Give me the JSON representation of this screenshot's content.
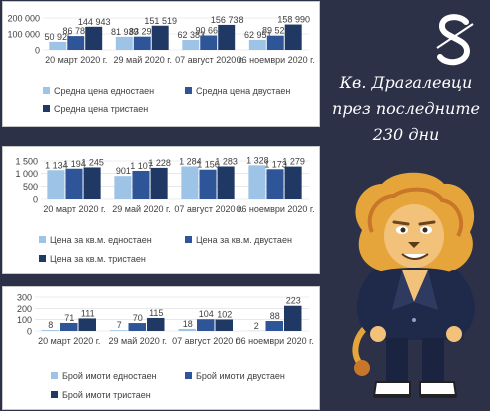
{
  "headline": {
    "line1": "Кв. Драгалевци",
    "line2": "през последните",
    "line3": "230 дни"
  },
  "colors": {
    "series1": "#9dc3e6",
    "series2": "#2e5597",
    "series3": "#1f3864",
    "background": "#2c3148",
    "text": "#404040"
  },
  "logo": {
    "name": "s-monogram-logo"
  },
  "mascot": {
    "name": "lion-mascot-illustration"
  },
  "chart_data": [
    {
      "type": "bar",
      "categories": [
        "20 март 2020 г.",
        "29 май 2020 г.",
        "07 август 2020 г.",
        "06 ноември 2020 г."
      ],
      "series": [
        {
          "name": "Средна цена едностаен",
          "values": [
            50925,
            81939,
            62383,
            62951
          ],
          "labels": [
            "50 925",
            "81 939",
            "62 383",
            "62 951"
          ]
        },
        {
          "name": "Средна цена двустаен",
          "values": [
            86786,
            83291,
            90667,
            89523
          ],
          "labels": [
            "86 786",
            "83 291",
            "90 667",
            "89 523"
          ]
        },
        {
          "name": "Средна цена тристаен",
          "values": [
            144943,
            151519,
            156738,
            158990
          ],
          "labels": [
            "144 943",
            "151 519",
            "156 738",
            "158 990"
          ]
        }
      ],
      "yticks": [
        0,
        100000,
        200000
      ],
      "ytick_labels": [
        "0",
        "100 000",
        "200 000"
      ],
      "ylim": [
        0,
        200000
      ],
      "legend_position": "bottom"
    },
    {
      "type": "bar",
      "categories": [
        "20 март 2020 г.",
        "29 май 2020 г.",
        "07 август 2020 г.",
        "06 ноември 2020 г."
      ],
      "series": [
        {
          "name": "Цена за кв.м. едностаен",
          "values": [
            1134,
            901,
            1284,
            1328
          ],
          "labels": [
            "1 134",
            "901",
            "1 284",
            "1 328"
          ]
        },
        {
          "name": "Цена за кв.м. двустаен",
          "values": [
            1194,
            1107,
            1156,
            1173
          ],
          "labels": [
            "1 194",
            "1 107",
            "1 156",
            "1 173"
          ]
        },
        {
          "name": "Цена за кв.м. тристаен",
          "values": [
            1245,
            1228,
            1283,
            1279
          ],
          "labels": [
            "1 245",
            "1 228",
            "1 283",
            "1 279"
          ]
        }
      ],
      "yticks": [
        0,
        500,
        1000,
        1500
      ],
      "ytick_labels": [
        "0",
        "500",
        "1 000",
        "1 500"
      ],
      "ylim": [
        0,
        1500
      ],
      "legend_position": "bottom"
    },
    {
      "type": "bar",
      "categories": [
        "20 март 2020 г.",
        "29 май 2020 г.",
        "07 август 2020 г.",
        "06 ноември 2020 г."
      ],
      "series": [
        {
          "name": "Брой имоти едностаен",
          "values": [
            8,
            7,
            18,
            2
          ],
          "labels": [
            "8",
            "7",
            "18",
            "2"
          ]
        },
        {
          "name": "Брой имоти двустаен",
          "values": [
            71,
            70,
            104,
            88
          ],
          "labels": [
            "71",
            "70",
            "104",
            "88"
          ]
        },
        {
          "name": "Брой имоти тристаен",
          "values": [
            111,
            115,
            102,
            223
          ],
          "labels": [
            "111",
            "115",
            "102",
            "223"
          ]
        }
      ],
      "yticks": [
        0,
        100,
        200,
        300
      ],
      "ytick_labels": [
        "0",
        "100",
        "200",
        "300"
      ],
      "ylim": [
        0,
        300
      ],
      "legend_position": "bottom"
    }
  ]
}
